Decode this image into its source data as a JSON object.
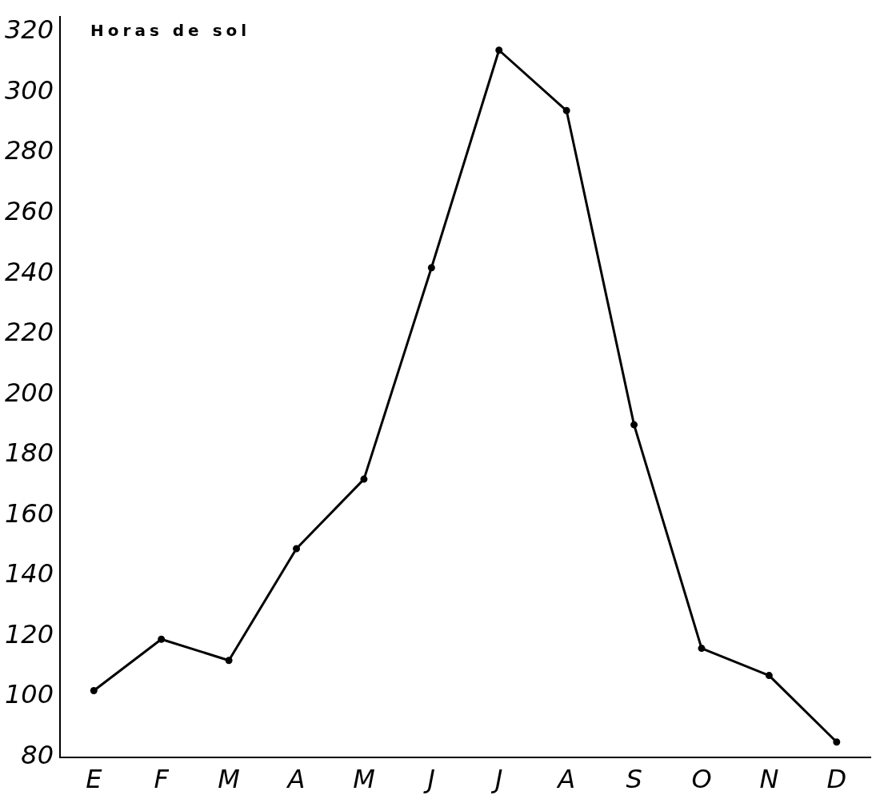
{
  "chart_data": {
    "type": "line",
    "title": "Horas de sol",
    "categories": [
      "E",
      "F",
      "M",
      "A",
      "M",
      "J",
      "J",
      "A",
      "S",
      "O",
      "N",
      "D"
    ],
    "series": [
      {
        "color": "#000000",
        "values": [
          102,
          119,
          112,
          149,
          172,
          242,
          314,
          294,
          190,
          116,
          107,
          85
        ]
      }
    ],
    "ylim": [
      80,
      325
    ],
    "yticks": [
      80,
      100,
      120,
      140,
      160,
      180,
      200,
      220,
      240,
      260,
      280,
      300,
      320
    ],
    "grid": false,
    "legend": false,
    "marker": "circle",
    "line_style": "solid"
  }
}
